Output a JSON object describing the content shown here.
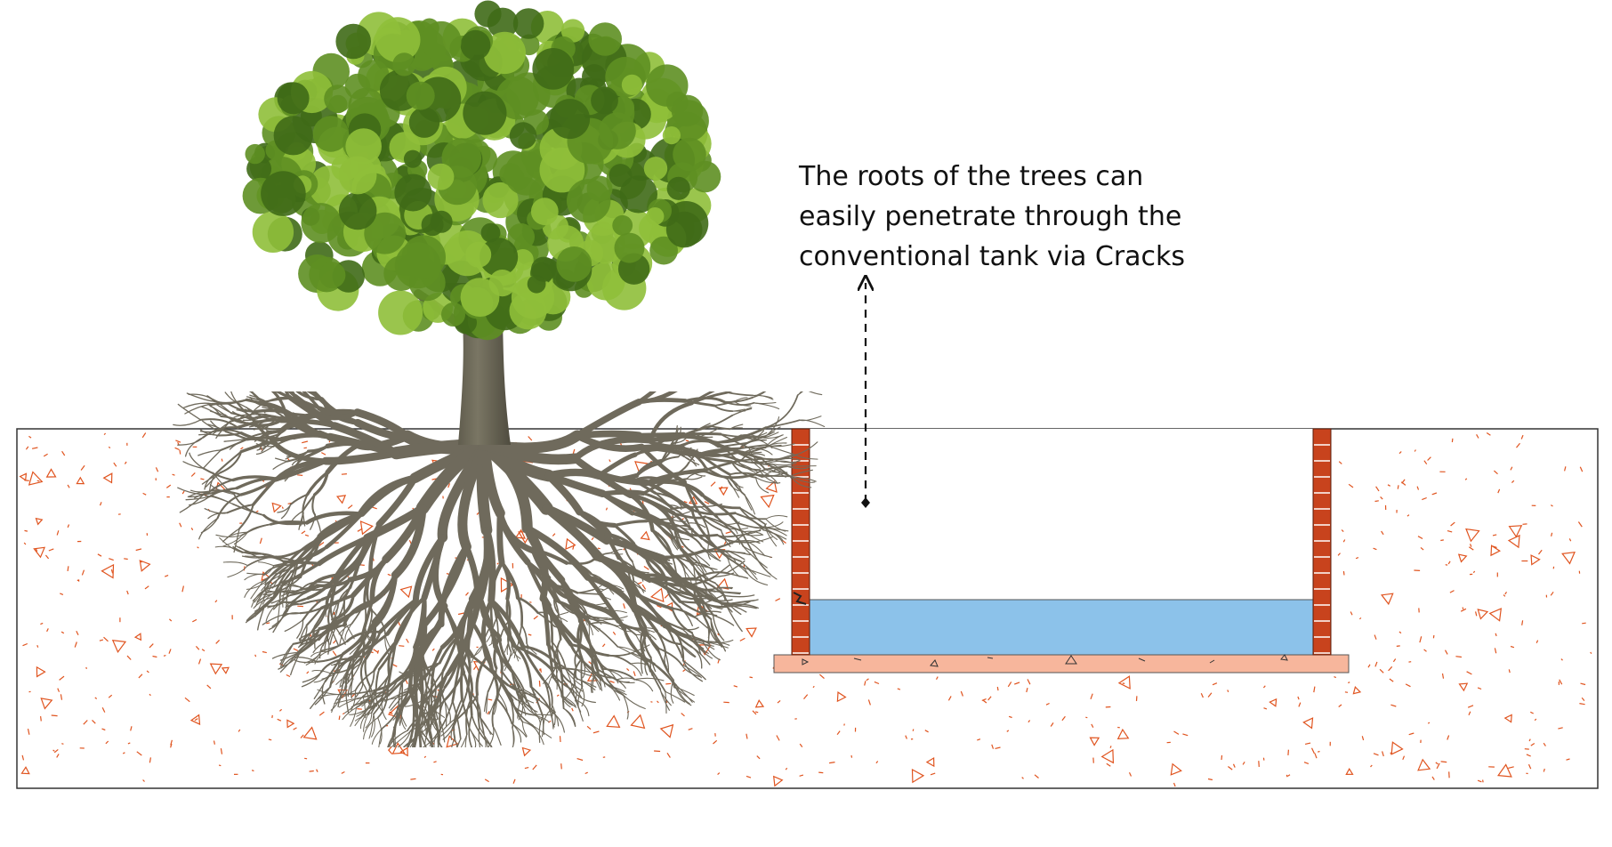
{
  "annotation": {
    "lines": [
      "The roots of the trees can",
      "easily penetrate through the",
      "conventional tank via Cracks"
    ]
  },
  "colors": {
    "soil_outline": "#333333",
    "soil_fill": "#ffffff",
    "aggregate": "#e0541f",
    "brick": "#c8431d",
    "mortar": "#ffffff",
    "water": "#8cc2ea",
    "base_slab": "#f7b69c",
    "root": "#6f6a5c",
    "trunk": "#5f5c4c",
    "foliage_dark": "#3f6a17",
    "foliage_mid": "#5e8f22",
    "foliage_light": "#8fbf3a"
  },
  "icons": {
    "tree": "tree-illustration",
    "arrow": "dashed-arrow-up"
  }
}
